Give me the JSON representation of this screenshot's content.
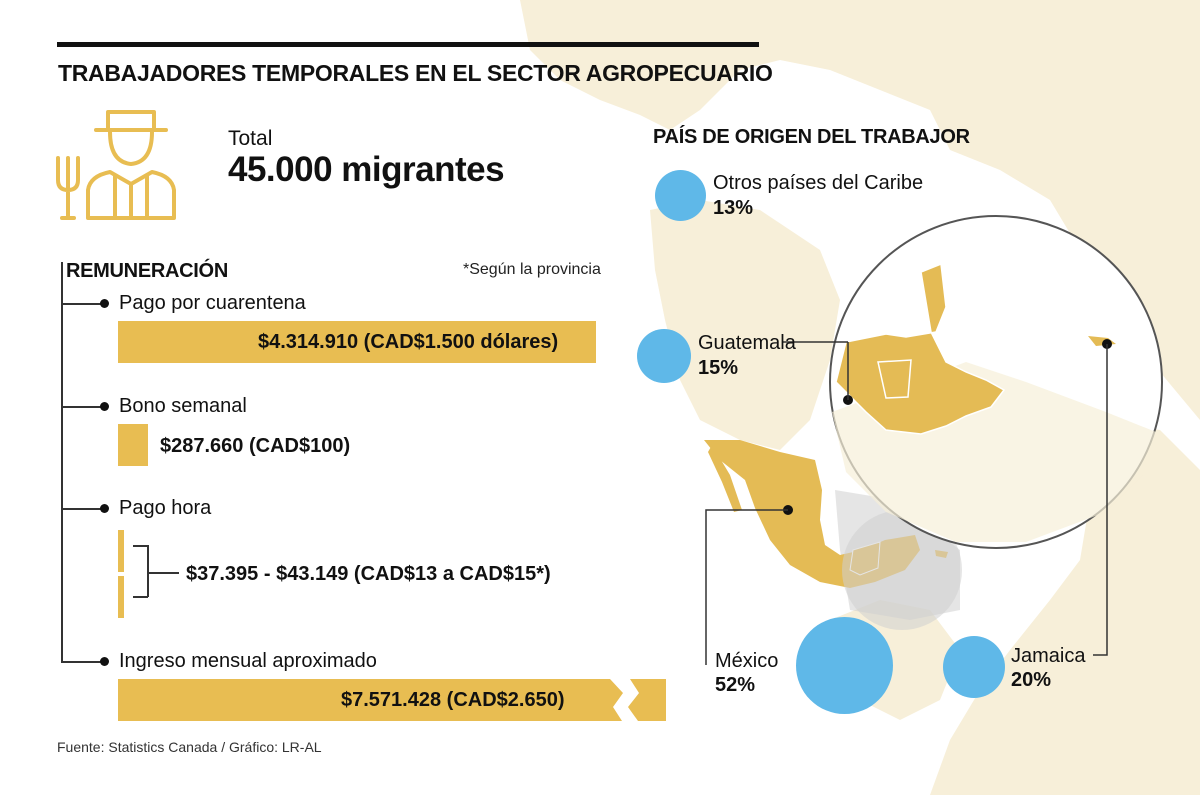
{
  "header": {
    "title": "TRABAJADORES TEMPORALES EN EL SECTOR AGROPECUARIO"
  },
  "total": {
    "label": "Total",
    "value": "45.000 migrantes"
  },
  "remuneration": {
    "title": "REMUNERACIÓN",
    "note": "*Según la provincia",
    "items": [
      {
        "label": "Pago por cuarentena",
        "value": "$4.314.910 (CAD$1.500 dólares)"
      },
      {
        "label": "Bono semanal",
        "value": "$287.660 (CAD$100)"
      },
      {
        "label": "Pago hora",
        "value": "$37.395 - $43.149 (CAD$13 a CAD$15*)"
      },
      {
        "label": "Ingreso mensual aproximado",
        "value": "$7.571.428 (CAD$2.650)"
      }
    ]
  },
  "origin": {
    "title": "PAÍS DE ORIGEN DEL TRABAJOR",
    "countries": [
      {
        "name": "Otros países del Caribe",
        "pct": "13%",
        "share": 13
      },
      {
        "name": "Guatemala",
        "pct": "15%",
        "share": 15
      },
      {
        "name": "México",
        "pct": "52%",
        "share": 52
      },
      {
        "name": "Jamaica",
        "pct": "20%",
        "share": 20
      }
    ]
  },
  "colors": {
    "bar": "#e8bd52",
    "bubble": "#5fb8e8",
    "map_bg": "#f7efd9",
    "map_highlight": "#e4bb55"
  },
  "icons": {
    "worker": "farmer-with-pitchfork-icon"
  },
  "source": "Fuente: Statistics Canada / Gráfico: LR-AL"
}
